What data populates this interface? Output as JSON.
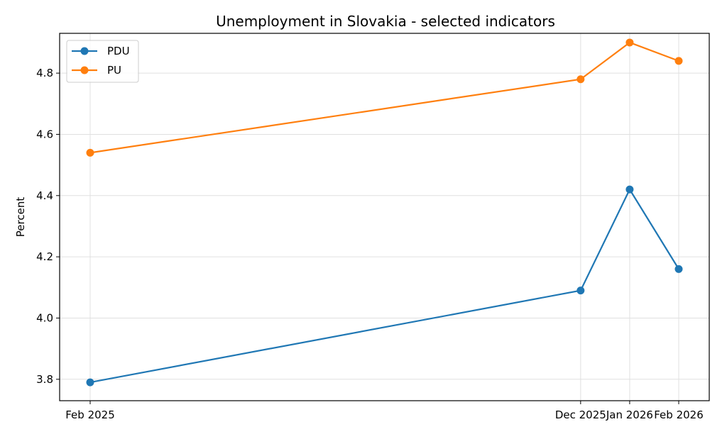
{
  "chart_data": {
    "type": "line",
    "title": "Unemployment in Slovakia - selected indicators",
    "xlabel": "",
    "ylabel": "Percent",
    "categories": [
      "Feb 2025",
      "Dec 2025",
      "Jan 2026",
      "Feb 2026"
    ],
    "x_dates": [
      "2025-02",
      "2025-12",
      "2026-01",
      "2026-02"
    ],
    "yticks": [
      "3.8",
      "4.0",
      "4.2",
      "4.4",
      "4.6",
      "4.8"
    ],
    "ylim": [
      3.73,
      4.93
    ],
    "grid": true,
    "legend_position": "top-left",
    "series": [
      {
        "name": "PDU",
        "color": "#1f77b4",
        "values": [
          3.79,
          4.09,
          4.42,
          4.16
        ]
      },
      {
        "name": "PU",
        "color": "#ff7f0e",
        "values": [
          4.54,
          4.78,
          4.9,
          4.84
        ]
      }
    ]
  }
}
